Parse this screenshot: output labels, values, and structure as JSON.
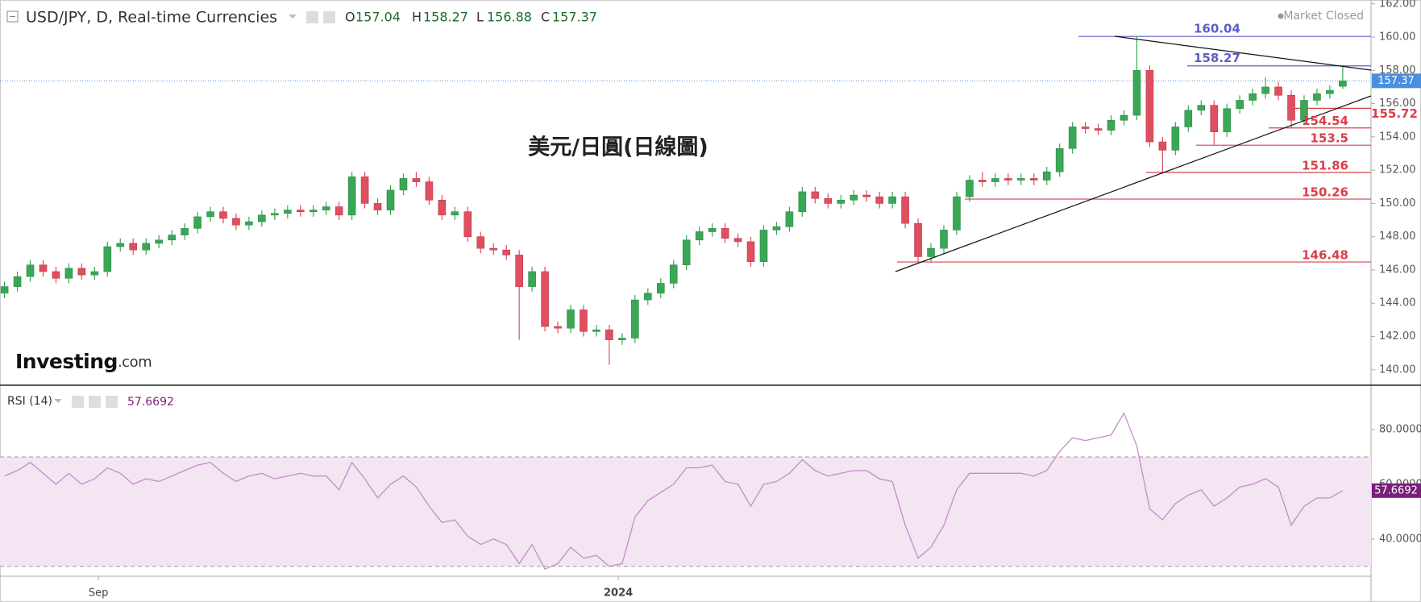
{
  "header": {
    "title": "USD/JPY, D, Real-time Currencies",
    "ohlc_letters": [
      "O",
      "H",
      "L",
      "C"
    ],
    "status": "Market Closed"
  },
  "watermark": {
    "brand": "Investing",
    "suffix": ".com"
  },
  "annotation": "美元/日圓(日線圖)",
  "chart_data": [
    {
      "type": "candlestick",
      "up_color": "#3aa757",
      "down_color": "#e04f5f",
      "last_color": "#4a8fe0",
      "xlim": [
        -0.35,
        106.2
      ],
      "ylim": [
        139.07,
        162.23
      ],
      "yticks": [
        {
          "value": 140,
          "label": "140.00"
        },
        {
          "value": 142,
          "label": "142.00"
        },
        {
          "value": 144,
          "label": "144.00"
        },
        {
          "value": 146,
          "label": "146.00"
        },
        {
          "value": 148,
          "label": "148.00"
        },
        {
          "value": 150,
          "label": "150.00"
        },
        {
          "value": 152,
          "label": "152.00"
        },
        {
          "value": 154,
          "label": "154.00"
        },
        {
          "value": 156,
          "label": "156.00"
        },
        {
          "value": 158,
          "label": "158.00"
        },
        {
          "value": 160,
          "label": "160.00"
        },
        {
          "value": 162,
          "label": "162.00"
        }
      ],
      "levels": [
        {
          "value": 160.04,
          "color": "#5b5fc7"
        },
        {
          "value": 158.27,
          "color": "#5b5fc7"
        },
        {
          "value": 155.72,
          "color": "#d9404a"
        },
        {
          "value": 154.54,
          "color": "#d9404a"
        },
        {
          "value": 153.5,
          "color": "#d9404a"
        },
        {
          "value": 151.86,
          "color": "#d9404a"
        },
        {
          "value": 150.26,
          "color": "#d9404a"
        },
        {
          "value": 146.48,
          "color": "#d9404a"
        }
      ],
      "open": [
        144.6,
        145.0,
        145.6,
        146.3,
        145.9,
        145.5,
        146.1,
        145.7,
        145.9,
        147.4,
        147.6,
        147.2,
        147.6,
        147.8,
        148.1,
        148.5,
        149.2,
        149.5,
        149.1,
        148.7,
        148.9,
        149.3,
        149.4,
        149.6,
        149.5,
        149.6,
        149.8,
        149.3,
        151.6,
        150.0,
        149.6,
        150.8,
        151.5,
        151.3,
        150.2,
        149.3,
        149.5,
        148.0,
        147.3,
        147.2,
        146.9,
        145.0,
        145.9,
        142.6,
        142.5,
        143.6,
        142.3,
        142.4,
        141.8,
        141.9,
        144.2,
        144.6,
        145.2,
        146.3,
        147.8,
        148.3,
        148.5,
        147.9,
        147.7,
        146.5,
        148.4,
        148.6,
        149.5,
        150.7,
        150.3,
        150.0,
        150.2,
        150.5,
        150.4,
        150.0,
        150.4,
        148.8,
        146.8,
        147.3,
        148.4,
        150.4,
        151.4,
        151.3,
        151.5,
        151.4,
        151.5,
        151.4,
        151.9,
        153.3,
        154.6,
        154.5,
        154.4,
        155.0,
        155.3,
        158.0,
        153.7,
        153.2,
        154.6,
        155.6,
        155.9,
        154.3,
        155.7,
        156.2,
        156.6,
        157.0,
        156.5,
        155.0,
        156.2,
        156.6,
        157.04
      ],
      "high": [
        145.3,
        145.9,
        146.6,
        146.6,
        146.2,
        146.4,
        146.4,
        146.2,
        147.7,
        147.9,
        147.9,
        147.9,
        148.1,
        148.4,
        148.8,
        149.5,
        149.8,
        149.8,
        149.4,
        149.2,
        149.6,
        149.7,
        149.9,
        149.9,
        149.9,
        150.1,
        150.1,
        151.9,
        151.9,
        150.3,
        151.1,
        151.8,
        151.9,
        151.6,
        150.5,
        149.8,
        149.8,
        148.3,
        147.6,
        147.5,
        147.2,
        146.2,
        146.2,
        142.9,
        143.9,
        143.9,
        142.7,
        142.7,
        142.2,
        144.5,
        144.9,
        145.5,
        146.6,
        148.1,
        148.6,
        148.8,
        148.8,
        148.2,
        148.0,
        148.7,
        148.9,
        149.8,
        151.0,
        151.0,
        150.6,
        150.5,
        150.8,
        150.8,
        150.7,
        150.7,
        150.7,
        149.1,
        147.6,
        148.7,
        150.7,
        151.7,
        151.9,
        151.8,
        151.8,
        151.8,
        151.8,
        152.2,
        153.6,
        154.9,
        154.9,
        154.8,
        155.3,
        155.6,
        160.04,
        158.3,
        154.0,
        154.9,
        155.9,
        156.2,
        156.2,
        156.0,
        156.5,
        156.9,
        157.6,
        157.3,
        156.8,
        156.5,
        156.9,
        157.1,
        158.27
      ],
      "low": [
        144.3,
        144.7,
        145.3,
        145.6,
        145.2,
        145.2,
        145.4,
        145.4,
        145.6,
        147.1,
        146.9,
        146.9,
        147.3,
        147.5,
        147.8,
        148.2,
        148.9,
        148.8,
        148.4,
        148.4,
        148.6,
        149.0,
        149.1,
        149.2,
        149.2,
        149.3,
        149.0,
        149.0,
        149.7,
        149.3,
        149.3,
        150.5,
        151.0,
        149.9,
        149.0,
        149.0,
        147.7,
        147.0,
        146.9,
        146.6,
        141.8,
        144.7,
        142.3,
        142.2,
        142.2,
        142.0,
        142.0,
        140.3,
        141.5,
        141.6,
        143.9,
        144.3,
        144.9,
        146.0,
        147.5,
        148.0,
        147.6,
        147.4,
        146.2,
        146.2,
        148.1,
        148.3,
        149.2,
        150.0,
        149.7,
        149.7,
        149.9,
        150.1,
        149.7,
        149.7,
        148.5,
        146.48,
        146.5,
        147.0,
        148.1,
        150.1,
        151.0,
        151.0,
        151.1,
        151.1,
        151.1,
        151.1,
        151.6,
        153.0,
        154.2,
        154.1,
        154.1,
        154.7,
        155.0,
        153.4,
        151.86,
        152.9,
        154.3,
        155.3,
        153.5,
        154.0,
        155.4,
        155.9,
        156.3,
        156.2,
        154.54,
        154.7,
        155.9,
        156.3,
        156.88
      ],
      "close": [
        145.0,
        145.6,
        146.3,
        145.9,
        145.5,
        146.1,
        145.7,
        145.9,
        147.4,
        147.6,
        147.2,
        147.6,
        147.8,
        148.1,
        148.5,
        149.2,
        149.5,
        149.1,
        148.7,
        148.9,
        149.3,
        149.4,
        149.6,
        149.5,
        149.6,
        149.8,
        149.3,
        151.6,
        150.0,
        149.6,
        150.8,
        151.5,
        151.3,
        150.2,
        149.3,
        149.5,
        148.0,
        147.3,
        147.2,
        146.9,
        145.0,
        145.9,
        142.6,
        142.5,
        143.6,
        142.3,
        142.4,
        141.8,
        141.9,
        144.2,
        144.6,
        145.2,
        146.3,
        147.8,
        148.3,
        148.5,
        147.9,
        147.7,
        146.5,
        148.4,
        148.6,
        149.5,
        150.7,
        150.3,
        150.0,
        150.2,
        150.5,
        150.4,
        150.0,
        150.4,
        148.8,
        146.8,
        147.3,
        148.4,
        150.4,
        151.4,
        151.3,
        151.5,
        151.4,
        151.5,
        151.4,
        151.9,
        153.3,
        154.6,
        154.5,
        154.4,
        155.0,
        155.3,
        158.0,
        153.7,
        153.2,
        154.6,
        155.6,
        155.9,
        154.3,
        155.7,
        156.2,
        156.6,
        157.0,
        156.5,
        155.0,
        156.2,
        156.6,
        156.8,
        157.37
      ]
    },
    {
      "type": "line",
      "title": "RSI (14)",
      "color": "#c48ccb",
      "band_color": "#f3e5f2",
      "value_color": "#7b1f7b",
      "xlim": [
        -0.35,
        106.2
      ],
      "ylim": [
        26.4,
        96.2
      ],
      "band": [
        30,
        70
      ],
      "yticks": [
        {
          "value": 40,
          "label": "40.0000"
        },
        {
          "value": 60,
          "label": "60.0000"
        },
        {
          "value": 80,
          "label": "80.0000"
        }
      ],
      "xticks": [
        {
          "value": 7.3,
          "label": "Sep"
        },
        {
          "value": 47.7,
          "label": "2024"
        }
      ],
      "values": [
        63,
        65,
        68,
        64,
        60,
        64,
        60,
        62,
        66,
        64,
        60,
        62,
        61,
        63,
        65,
        67,
        68,
        64,
        61,
        63,
        64,
        62,
        63,
        64,
        63,
        63,
        58,
        68,
        62,
        55,
        60,
        63,
        59,
        52,
        46,
        47,
        41,
        38,
        40,
        38,
        31,
        38,
        29,
        31,
        37,
        33,
        34,
        30,
        31,
        48,
        54,
        57,
        60,
        66,
        66,
        67,
        61,
        60,
        52,
        60,
        61,
        64,
        69,
        65,
        63,
        64,
        65,
        65,
        62,
        61,
        45,
        33,
        37,
        45,
        58,
        64,
        64,
        64,
        64,
        64,
        63,
        65,
        72,
        77,
        76,
        77,
        78,
        86,
        74,
        51,
        47,
        53,
        56,
        58,
        52,
        55,
        59,
        60,
        62,
        59,
        45,
        52,
        55,
        55,
        57.6692
      ]
    }
  ]
}
